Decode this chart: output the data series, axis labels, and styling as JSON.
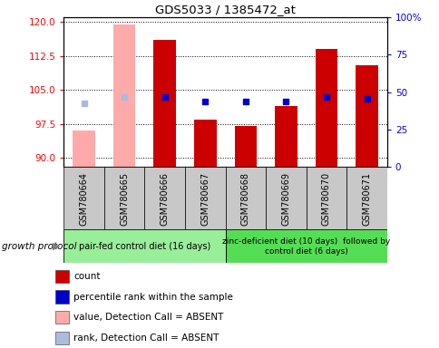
{
  "title": "GDS5033 / 1385472_at",
  "samples": [
    "GSM780664",
    "GSM780665",
    "GSM780666",
    "GSM780667",
    "GSM780668",
    "GSM780669",
    "GSM780670",
    "GSM780671"
  ],
  "bar_values": [
    96.0,
    119.5,
    116.0,
    98.5,
    97.0,
    101.5,
    114.0,
    110.5
  ],
  "bar_colors": [
    "#ffaaaa",
    "#ffaaaa",
    "#cc0000",
    "#cc0000",
    "#cc0000",
    "#cc0000",
    "#cc0000",
    "#cc0000"
  ],
  "bar_absent": [
    true,
    true,
    false,
    false,
    false,
    false,
    false,
    false
  ],
  "percentile_values": [
    102.0,
    103.5,
    103.5,
    102.5,
    102.5,
    102.5,
    103.5,
    103.0
  ],
  "percentile_colors": [
    "#aabbdd",
    "#aabbdd",
    "#0000cc",
    "#0000cc",
    "#0000cc",
    "#0000cc",
    "#0000cc",
    "#0000cc"
  ],
  "percentile_absent": [
    true,
    true,
    false,
    false,
    false,
    false,
    false,
    false
  ],
  "ylim_left": [
    88,
    121
  ],
  "yticks_left": [
    90,
    97.5,
    105,
    112.5,
    120
  ],
  "ylim_right": [
    0,
    100
  ],
  "yticks_right": [
    0,
    25,
    50,
    75,
    100
  ],
  "ytick_right_labels": [
    "0",
    "25",
    "50",
    "75",
    "100%"
  ],
  "group1_indices": [
    0,
    1,
    2,
    3
  ],
  "group2_indices": [
    4,
    5,
    6,
    7
  ],
  "group1_label": "pair-fed control diet (16 days)",
  "group2_label": "zinc-deficient diet (10 days)  followed by\ncontrol diet (6 days)",
  "growth_protocol_label": "growth protocol",
  "legend_items": [
    {
      "color": "#cc0000",
      "label": "count"
    },
    {
      "color": "#0000cc",
      "label": "percentile rank within the sample"
    },
    {
      "color": "#ffaaaa",
      "label": "value, Detection Call = ABSENT"
    },
    {
      "color": "#aabbdd",
      "label": "rank, Detection Call = ABSENT"
    }
  ],
  "background_color": "#ffffff",
  "group_box_color": "#c8c8c8",
  "group1_bg": "#99ee99",
  "group2_bg": "#55dd55"
}
